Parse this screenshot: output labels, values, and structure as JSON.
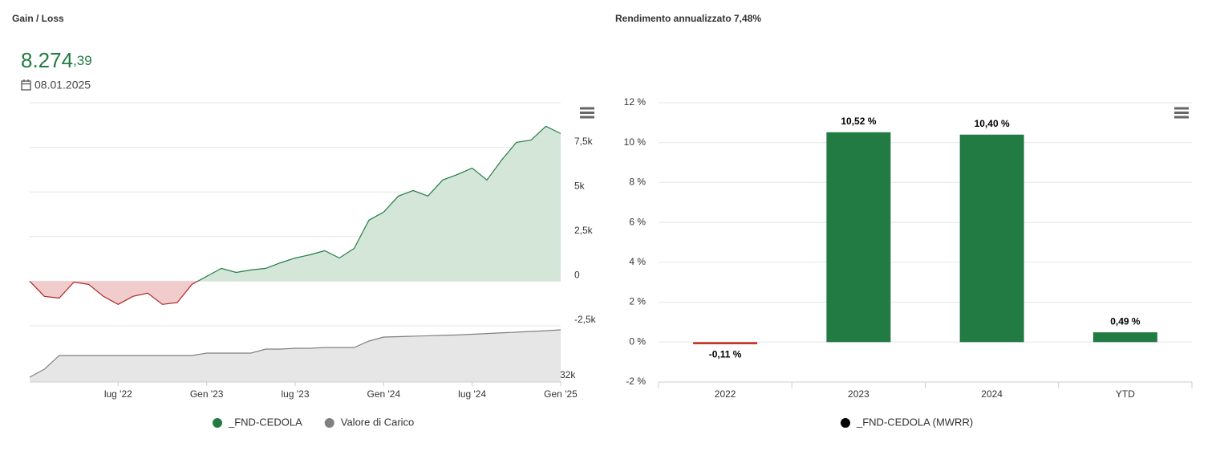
{
  "chart_data": [
    {
      "type": "area",
      "title": "Gain / Loss",
      "headline": {
        "integer_part": "8.274",
        "decimal_part": ",39",
        "date": "08.01.2025"
      },
      "x": [
        "2022-01",
        "2022-02",
        "2022-03",
        "2022-04",
        "2022-05",
        "2022-06",
        "2022-07",
        "2022-08",
        "2022-09",
        "2022-10",
        "2022-11",
        "2022-12",
        "2023-01",
        "2023-02",
        "2023-03",
        "2023-04",
        "2023-05",
        "2023-06",
        "2023-07",
        "2023-08",
        "2023-09",
        "2023-10",
        "2023-11",
        "2023-12",
        "2024-01",
        "2024-02",
        "2024-03",
        "2024-04",
        "2024-05",
        "2024-06",
        "2024-07",
        "2024-08",
        "2024-09",
        "2024-10",
        "2024-11",
        "2024-12",
        "2025-01"
      ],
      "xlim": [
        "2022-01",
        "2025-01"
      ],
      "xticks": [
        {
          "value": "2022-07",
          "label": "lug '22"
        },
        {
          "value": "2023-01",
          "label": "Gen '23"
        },
        {
          "value": "2023-07",
          "label": "lug '23"
        },
        {
          "value": "2024-01",
          "label": "Gen '24"
        },
        {
          "value": "2024-07",
          "label": "lug '24"
        },
        {
          "value": "2025-01",
          "label": "Gen '25"
        }
      ],
      "ylim": [
        -2500,
        10000
      ],
      "yticks": [
        {
          "value": -2500,
          "label": "-2,5k"
        },
        0,
        {
          "value": 2500,
          "label": "2,5k"
        },
        {
          "value": 5000,
          "label": "5k"
        },
        {
          "value": 7500,
          "label": "7,5k"
        }
      ],
      "y2lim": [
        32000,
        36000
      ],
      "y2ticks": [
        {
          "value": 32000,
          "label": "32k"
        }
      ],
      "series": [
        {
          "name": "_FND-CEDOLA",
          "color": "#237b44",
          "negative_color": "#b22222",
          "fill": "#d4e6d8",
          "negative_fill": "#f0cccc",
          "values": [
            0,
            -850,
            -950,
            -50,
            -180,
            -850,
            -1300,
            -850,
            -670,
            -1300,
            -1200,
            -180,
            270,
            720,
            490,
            630,
            720,
            1030,
            1300,
            1480,
            1710,
            1300,
            1840,
            3420,
            3870,
            4770,
            5080,
            4770,
            5670,
            5980,
            6340,
            5670,
            6790,
            7780,
            7910,
            8680,
            8274
          ]
        },
        {
          "name": "Valore di Carico",
          "color": "#808080",
          "fill": "#e6e6e6",
          "axis": "y2",
          "values": [
            32343,
            32914,
            33886,
            33886,
            33886,
            33886,
            33886,
            33886,
            33886,
            33886,
            33886,
            33886,
            34057,
            34057,
            34057,
            34057,
            34343,
            34343,
            34400,
            34400,
            34457,
            34457,
            34457,
            34914,
            35200,
            35230,
            35260,
            35290,
            35320,
            35350,
            35400,
            35450,
            35500,
            35550,
            35600,
            35650,
            35714
          ]
        }
      ]
    },
    {
      "type": "bar",
      "title": "Rendimento annualizzato 7,48%",
      "categories": [
        "2022",
        "2023",
        "2024",
        "YTD"
      ],
      "ylim": [
        -2,
        12
      ],
      "yticks": [
        {
          "value": -2,
          "label": "-2 %"
        },
        {
          "value": 0,
          "label": "0 %"
        },
        {
          "value": 2,
          "label": "2 %"
        },
        {
          "value": 4,
          "label": "4 %"
        },
        {
          "value": 6,
          "label": "6 %"
        },
        {
          "value": 8,
          "label": "8 %"
        },
        {
          "value": 10,
          "label": "10 %"
        },
        {
          "value": 12,
          "label": "12 %"
        }
      ],
      "series": [
        {
          "name": "_FND-CEDOLA (MWRR)",
          "color": "#000000",
          "bar_colors": [
            "#c0392b",
            "#237b44",
            "#237b44",
            "#237b44"
          ],
          "values": [
            -0.11,
            10.52,
            10.4,
            0.49
          ],
          "value_labels": [
            "-0,11 %",
            "10,52 %",
            "10,40 %",
            "0,49 %"
          ]
        }
      ]
    }
  ]
}
